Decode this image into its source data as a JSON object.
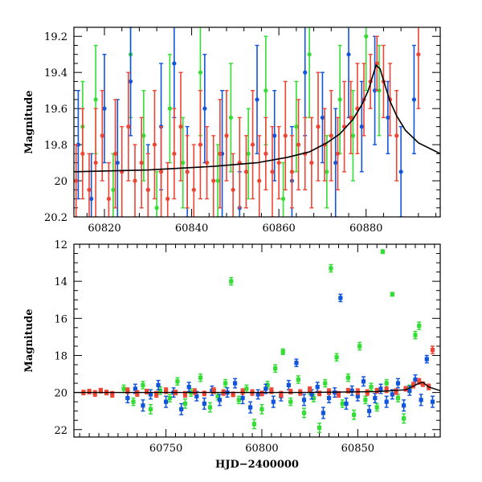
{
  "colors": {
    "green": "#33dd33",
    "blue": "#1155dd",
    "red": "#ee4433",
    "model": "#000000"
  },
  "chart_data": [
    {
      "type": "scatter",
      "title": "",
      "xlabel": "",
      "ylabel": "Magnitude",
      "xlim": [
        60813,
        60897
      ],
      "ylim": [
        20.2,
        19.15
      ],
      "y_inverted": true,
      "xticks": [
        60820,
        60840,
        60860,
        60880
      ],
      "yticks": [
        19.2,
        19.4,
        19.6,
        19.8,
        20,
        20.2
      ],
      "xtick_labels": [
        "60820",
        "60840",
        "60860",
        "60880"
      ],
      "ytick_labels": [
        "19.2",
        "19.4",
        "19.6",
        "19.8",
        "20",
        "20.2"
      ],
      "grid": false,
      "model_curve": {
        "description_free": true,
        "x": [
          60813,
          60830,
          60845,
          60855,
          60862,
          60867,
          60871,
          60874,
          60877,
          60879,
          60880.5,
          60881.5,
          60882.3,
          60883.2,
          60884.2,
          60885.5,
          60887,
          60889,
          60892,
          60897
        ],
        "y": [
          19.95,
          19.94,
          19.92,
          19.9,
          19.87,
          19.84,
          19.79,
          19.74,
          19.66,
          19.58,
          19.5,
          19.42,
          19.36,
          19.38,
          19.46,
          19.56,
          19.64,
          19.72,
          19.79,
          19.85
        ]
      },
      "series": [
        {
          "color": "green",
          "x": [
            60815,
            60818,
            60822,
            60826,
            60829,
            60832,
            60835,
            60838,
            60842,
            60846,
            60849,
            60853,
            60857,
            60861,
            60864,
            60867,
            60871,
            60874,
            60877,
            60880,
            60883
          ],
          "y": [
            19.7,
            19.55,
            20.05,
            19.3,
            19.75,
            20.15,
            19.6,
            19.9,
            19.4,
            20.0,
            19.65,
            19.85,
            19.5,
            20.1,
            19.7,
            19.3,
            19.95,
            19.55,
            19.75,
            19.2,
            19.5
          ],
          "err": [
            0.25,
            0.3,
            0.2,
            0.35,
            0.25,
            0.2,
            0.3,
            0.25,
            0.35,
            0.2,
            0.3,
            0.25,
            0.3,
            0.2,
            0.25,
            0.35,
            0.2,
            0.3,
            0.25,
            0.3,
            0.25
          ]
        },
        {
          "color": "blue",
          "x": [
            60814,
            60817,
            60820,
            60823,
            60826,
            60830,
            60833,
            60836,
            60839,
            60843,
            60847,
            60851,
            60855,
            60859,
            60863,
            60866,
            60870,
            60873,
            60876,
            60879,
            60882,
            60885,
            60888,
            60891
          ],
          "y": [
            19.8,
            20.1,
            19.6,
            19.9,
            19.45,
            20.05,
            19.7,
            19.35,
            19.95,
            19.6,
            19.85,
            20.15,
            19.55,
            19.75,
            20.0,
            19.4,
            19.65,
            19.9,
            19.3,
            19.7,
            19.5,
            19.65,
            19.95,
            19.55
          ],
          "err": [
            0.3,
            0.25,
            0.3,
            0.35,
            0.3,
            0.25,
            0.35,
            0.3,
            0.25,
            0.3,
            0.35,
            0.2,
            0.3,
            0.25,
            0.3,
            0.35,
            0.25,
            0.3,
            0.35,
            0.25,
            0.3,
            0.2,
            0.25,
            0.3
          ]
        },
        {
          "color": "red",
          "x": [
            60813.5,
            60815,
            60816.5,
            60818,
            60819.5,
            60821,
            60822.5,
            60824,
            60825.5,
            60827,
            60828.5,
            60830,
            60831.5,
            60833,
            60834.5,
            60836,
            60837.5,
            60839,
            60840.5,
            60842,
            60843.5,
            60845,
            60846.5,
            60848,
            60849.5,
            60851,
            60852.5,
            60854,
            60855.5,
            60857,
            60858.5,
            60860,
            60861.5,
            60863,
            60864.5,
            60866,
            60867.5,
            60869,
            60870.5,
            60872,
            60873.5,
            60875,
            60876.5,
            60878,
            60879.5,
            60881,
            60882.5,
            60884,
            60885.5,
            60887,
            60892
          ],
          "y": [
            20.0,
            19.85,
            20.05,
            19.9,
            19.75,
            20.1,
            19.85,
            19.95,
            19.7,
            20.0,
            19.9,
            20.05,
            19.8,
            19.95,
            20.1,
            19.85,
            19.7,
            19.95,
            20.05,
            19.8,
            19.9,
            20.0,
            19.85,
            19.75,
            20.05,
            19.9,
            19.95,
            19.8,
            20.0,
            19.85,
            19.95,
            19.9,
            19.75,
            19.95,
            19.8,
            19.85,
            19.9,
            19.7,
            19.8,
            19.75,
            19.85,
            19.7,
            19.65,
            19.6,
            19.55,
            19.45,
            19.35,
            19.45,
            19.55,
            19.75,
            19.3
          ],
          "err": [
            0.2,
            0.25,
            0.2,
            0.3,
            0.25,
            0.2,
            0.3,
            0.25,
            0.3,
            0.2,
            0.25,
            0.2,
            0.3,
            0.25,
            0.2,
            0.25,
            0.3,
            0.2,
            0.25,
            0.3,
            0.2,
            0.25,
            0.3,
            0.25,
            0.2,
            0.25,
            0.2,
            0.3,
            0.25,
            0.2,
            0.25,
            0.2,
            0.3,
            0.2,
            0.25,
            0.2,
            0.25,
            0.3,
            0.2,
            0.25,
            0.2,
            0.25,
            0.2,
            0.25,
            0.2,
            0.15,
            0.15,
            0.2,
            0.2,
            0.25,
            0.3
          ]
        }
      ]
    },
    {
      "type": "scatter",
      "title": "",
      "xlabel": "HJD−2400000",
      "ylabel": "Magnitude",
      "xlim": [
        60702,
        60893
      ],
      "ylim": [
        22.4,
        12
      ],
      "y_inverted": true,
      "xticks": [
        60750,
        60800,
        60850
      ],
      "yticks": [
        12,
        14,
        16,
        18,
        20,
        22
      ],
      "xtick_labels": [
        "60750",
        "60800",
        "60850"
      ],
      "ytick_labels": [
        "12",
        "14",
        "16",
        "18",
        "20",
        "22"
      ],
      "grid": false,
      "model_curve": {
        "x": [
          60702,
          60760,
          60820,
          60860,
          60875,
          60882,
          60884,
          60887,
          60893
        ],
        "y": [
          20.0,
          20.0,
          20.0,
          19.95,
          19.85,
          19.5,
          19.45,
          19.7,
          19.9
        ]
      },
      "series": [
        {
          "color": "green",
          "x": [
            60728,
            60733,
            60738,
            60742,
            60747,
            60752,
            60756,
            60760,
            60763,
            60768,
            60773,
            60777,
            60781,
            60784,
            60788,
            60792,
            60796,
            60800,
            60803,
            60807,
            60811,
            60815,
            60819,
            60822,
            60825,
            60827,
            60830,
            60833,
            60836,
            60839,
            60842,
            60845,
            60848,
            60851,
            60854,
            60857,
            60860,
            60863,
            60865,
            60868,
            60871,
            60874,
            60877,
            60880,
            60882
          ],
          "y": [
            19.8,
            20.5,
            19.6,
            20.9,
            19.9,
            20.3,
            19.4,
            20.6,
            20.0,
            19.2,
            20.8,
            20.2,
            19.5,
            14.0,
            20.4,
            19.8,
            21.7,
            20.9,
            19.6,
            18.7,
            17.8,
            20.5,
            19.3,
            21.1,
            19.9,
            20.3,
            21.9,
            19.5,
            13.3,
            18.1,
            20.6,
            19.2,
            21.2,
            17.5,
            20.4,
            19.7,
            20.8,
            12.4,
            19.5,
            14.7,
            20.3,
            21.4,
            19.8,
            16.9,
            16.4
          ],
          "err": [
            0.2,
            0.2,
            0.2,
            0.25,
            0.2,
            0.2,
            0.2,
            0.25,
            0.2,
            0.2,
            0.25,
            0.2,
            0.2,
            0.2,
            0.2,
            0.2,
            0.25,
            0.25,
            0.2,
            0.2,
            0.15,
            0.2,
            0.2,
            0.25,
            0.2,
            0.2,
            0.25,
            0.2,
            0.2,
            0.2,
            0.2,
            0.2,
            0.25,
            0.2,
            0.2,
            0.2,
            0.2,
            0.1,
            0.2,
            0.1,
            0.2,
            0.25,
            0.2,
            0.2,
            0.2
          ]
        },
        {
          "color": "blue",
          "x": [
            60730,
            60734,
            60738,
            60742,
            60746,
            60750,
            60754,
            60758,
            60762,
            60766,
            60770,
            60774,
            60778,
            60782,
            60786,
            60790,
            60794,
            60798,
            60802,
            60806,
            60810,
            60814,
            60818,
            60822,
            60826,
            60829,
            60832,
            60835,
            60838,
            60841,
            60844,
            60847,
            60850,
            60853,
            60856,
            60859,
            60862,
            60865,
            60868,
            60871,
            60874,
            60877,
            60880,
            60883,
            60886,
            60889
          ],
          "y": [
            20.3,
            19.8,
            20.7,
            20.1,
            19.6,
            20.5,
            20.0,
            20.9,
            19.7,
            20.2,
            20.6,
            19.9,
            20.4,
            20.0,
            19.5,
            20.3,
            20.8,
            20.1,
            19.8,
            20.5,
            20.2,
            19.6,
            18.4,
            20.4,
            20.1,
            19.7,
            21.1,
            20.3,
            20.0,
            14.9,
            20.6,
            19.9,
            20.2,
            19.4,
            21.0,
            20.3,
            19.8,
            20.5,
            20.1,
            19.5,
            20.7,
            19.9,
            19.3,
            20.4,
            18.2,
            20.5
          ],
          "err": [
            0.25,
            0.25,
            0.3,
            0.25,
            0.25,
            0.3,
            0.25,
            0.3,
            0.25,
            0.25,
            0.3,
            0.25,
            0.3,
            0.25,
            0.25,
            0.3,
            0.3,
            0.25,
            0.25,
            0.3,
            0.25,
            0.25,
            0.2,
            0.3,
            0.25,
            0.25,
            0.3,
            0.25,
            0.25,
            0.2,
            0.3,
            0.25,
            0.25,
            0.25,
            0.3,
            0.25,
            0.25,
            0.3,
            0.25,
            0.25,
            0.3,
            0.25,
            0.25,
            0.3,
            0.2,
            0.3
          ]
        },
        {
          "color": "red",
          "x": [
            60707,
            60710,
            60713,
            60716,
            60719,
            60722,
            60730,
            60735,
            60740,
            60745,
            60750,
            60755,
            60760,
            60765,
            60770,
            60775,
            60780,
            60785,
            60790,
            60795,
            60800,
            60805,
            60810,
            60815,
            60820,
            60825,
            60830,
            60835,
            60840,
            60845,
            60850,
            60855,
            60860,
            60865,
            60870,
            60875,
            60879,
            60882,
            60884,
            60887,
            60889
          ],
          "y": [
            20.0,
            19.95,
            20.05,
            19.9,
            20.0,
            20.1,
            19.9,
            20.05,
            19.95,
            20.1,
            19.9,
            20.0,
            20.1,
            19.95,
            20.05,
            19.9,
            20.0,
            20.1,
            19.95,
            20.0,
            20.05,
            19.9,
            20.1,
            19.95,
            20.0,
            19.85,
            20.05,
            19.95,
            20.1,
            19.9,
            19.95,
            20.0,
            19.9,
            19.85,
            19.95,
            19.8,
            19.6,
            19.4,
            19.55,
            19.7,
            17.7
          ],
          "err": [
            0.12,
            0.12,
            0.15,
            0.12,
            0.12,
            0.15,
            0.15,
            0.15,
            0.12,
            0.15,
            0.15,
            0.12,
            0.15,
            0.15,
            0.12,
            0.15,
            0.15,
            0.12,
            0.15,
            0.15,
            0.12,
            0.15,
            0.15,
            0.12,
            0.15,
            0.15,
            0.12,
            0.15,
            0.15,
            0.12,
            0.15,
            0.15,
            0.12,
            0.15,
            0.15,
            0.12,
            0.15,
            0.15,
            0.12,
            0.15,
            0.2
          ]
        }
      ]
    }
  ]
}
